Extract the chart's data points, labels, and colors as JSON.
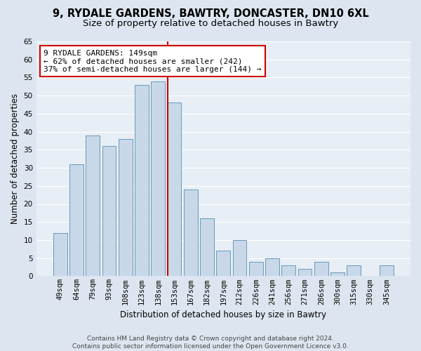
{
  "title_line1": "9, RYDALE GARDENS, BAWTRY, DONCASTER, DN10 6XL",
  "title_line2": "Size of property relative to detached houses in Bawtry",
  "xlabel": "Distribution of detached houses by size in Bawtry",
  "ylabel": "Number of detached properties",
  "categories": [
    "49sqm",
    "64sqm",
    "79sqm",
    "93sqm",
    "108sqm",
    "123sqm",
    "138sqm",
    "153sqm",
    "167sqm",
    "182sqm",
    "197sqm",
    "212sqm",
    "226sqm",
    "241sqm",
    "256sqm",
    "271sqm",
    "286sqm",
    "300sqm",
    "315sqm",
    "330sqm",
    "345sqm"
  ],
  "bar_values": [
    12,
    31,
    39,
    36,
    38,
    53,
    54,
    48,
    24,
    16,
    7,
    10,
    4,
    5,
    3,
    2,
    4,
    1,
    3,
    0,
    3
  ],
  "bar_color": "#c8d8e8",
  "bar_edgecolor": "#6699bb",
  "vline_color": "#cc0000",
  "vline_index": 6.575,
  "ylim": [
    0,
    65
  ],
  "yticks": [
    0,
    5,
    10,
    15,
    20,
    25,
    30,
    35,
    40,
    45,
    50,
    55,
    60,
    65
  ],
  "annotation_text": "9 RYDALE GARDENS: 149sqm\n← 62% of detached houses are smaller (242)\n37% of semi-detached houses are larger (144) →",
  "annotation_box_facecolor": "#ffffff",
  "annotation_box_edgecolor": "#cc0000",
  "footer_line1": "Contains HM Land Registry data © Crown copyright and database right 2024.",
  "footer_line2": "Contains public sector information licensed under the Open Government Licence v3.0.",
  "bg_color": "#dde6f0",
  "plot_bg_color": "#e8eef5",
  "grid_color": "#ffffff",
  "title_fontsize": 10.5,
  "subtitle_fontsize": 9.5,
  "tick_fontsize": 7.5,
  "ylabel_fontsize": 8.5,
  "xlabel_fontsize": 8.5,
  "annotation_fontsize": 8,
  "footer_fontsize": 6.5
}
